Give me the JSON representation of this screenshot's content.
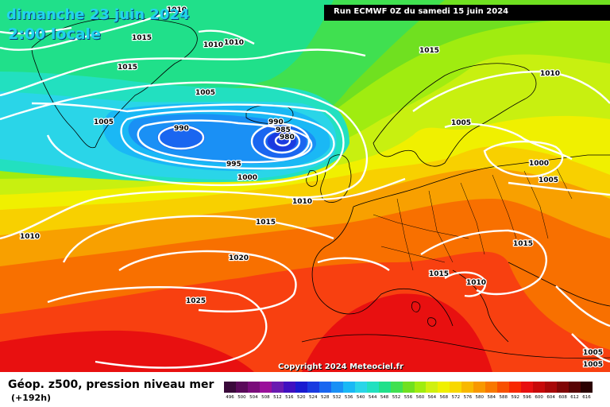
{
  "header": {
    "date": "dimanche 23 juin 2024",
    "time": "2:00 locale",
    "run": "Run ECMWF 0Z du samedi 15 juin 2024"
  },
  "copyright": "Copyright 2024 Meteociel.fr",
  "legend": {
    "field_title": "Géop. z500, pression niveau mer",
    "lead_time": "(+192h)",
    "levels": [
      "496",
      "500",
      "504",
      "508",
      "512",
      "516",
      "520",
      "524",
      "528",
      "532",
      "536",
      "540",
      "544",
      "548",
      "552",
      "556",
      "560",
      "564",
      "568",
      "572",
      "576",
      "580",
      "584",
      "588",
      "592",
      "596",
      "600",
      "604",
      "608",
      "612",
      "616"
    ],
    "colors": [
      "#3a0a3a",
      "#5a0a5a",
      "#7a0c7a",
      "#9a109a",
      "#6a1ab0",
      "#4010c0",
      "#1a1ad0",
      "#1a3ae0",
      "#1a66f0",
      "#1a90f5",
      "#1ab8f5",
      "#2ad5e8",
      "#22e0c0",
      "#20e08a",
      "#40e050",
      "#70e020",
      "#a0ec10",
      "#d0f010",
      "#f0f000",
      "#f8d800",
      "#f8b800",
      "#f89800",
      "#f87800",
      "#f85000",
      "#f82800",
      "#e81010",
      "#c80a0a",
      "#a80808",
      "#800606",
      "#580404",
      "#2a0202"
    ]
  },
  "isobars": [
    {
      "value": "1010"
    },
    {
      "value": "1015"
    },
    {
      "value": "1010"
    },
    {
      "value": "1010"
    },
    {
      "value": "1015"
    },
    {
      "value": "1005"
    },
    {
      "value": "1005"
    },
    {
      "value": "990"
    },
    {
      "value": "990"
    },
    {
      "value": "985"
    },
    {
      "value": "980"
    },
    {
      "value": "995"
    },
    {
      "value": "1000"
    },
    {
      "value": "1010"
    },
    {
      "value": "1015"
    },
    {
      "value": "1015"
    },
    {
      "value": "1010"
    },
    {
      "value": "1005"
    },
    {
      "value": "1000"
    },
    {
      "value": "1005"
    },
    {
      "value": "1010"
    },
    {
      "value": "1020"
    },
    {
      "value": "1025"
    },
    {
      "value": "1015"
    },
    {
      "value": "1015"
    },
    {
      "value": "1010"
    },
    {
      "value": "1005"
    },
    {
      "value": "1005"
    }
  ]
}
